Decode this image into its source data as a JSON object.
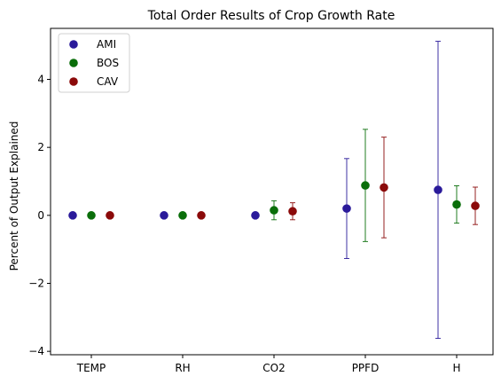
{
  "chart_data": {
    "type": "scatter",
    "title": "Total Order Results of Crop Growth Rate",
    "xlabel": "",
    "ylabel": "Percent of Output Explained",
    "categories": [
      "TEMP",
      "RH",
      "CO2",
      "PPFD",
      "H"
    ],
    "ylim": [
      -4.1,
      5.5
    ],
    "yticks": [
      -4,
      -2,
      0,
      2,
      4
    ],
    "yticklabels": [
      "−4",
      "−2",
      "0",
      "2",
      "4"
    ],
    "grid": false,
    "legend_position": "top-left",
    "series": [
      {
        "name": "AMI",
        "color": "#2a1a9a",
        "values": [
          0.0,
          0.0,
          0.0,
          0.2,
          0.75
        ],
        "errors": [
          0.0,
          0.0,
          0.0,
          1.47,
          4.37
        ]
      },
      {
        "name": "BOS",
        "color": "#0a6e0a",
        "values": [
          0.0,
          0.0,
          0.15,
          0.88,
          0.32
        ],
        "errors": [
          0.0,
          0.0,
          0.28,
          1.65,
          0.55
        ]
      },
      {
        "name": "CAV",
        "color": "#8b0a0a",
        "values": [
          0.0,
          0.0,
          0.12,
          0.82,
          0.28
        ],
        "errors": [
          0.0,
          0.0,
          0.25,
          1.48,
          0.55
        ]
      }
    ]
  }
}
